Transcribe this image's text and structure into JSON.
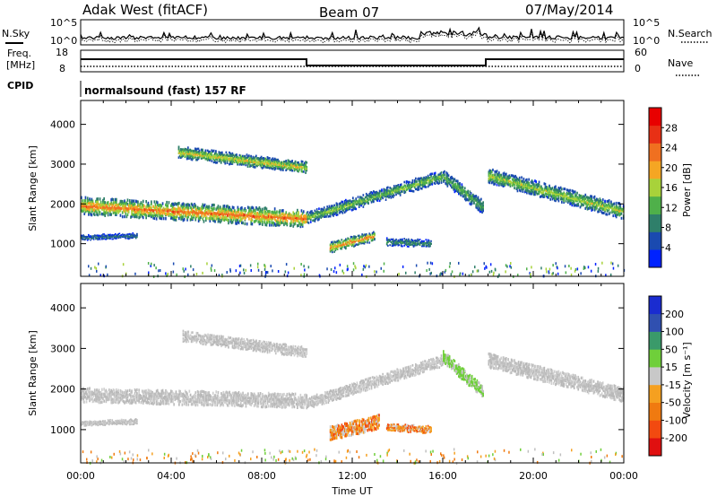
{
  "header": {
    "station": "Adak West (fitACF)",
    "beam": "Beam 07",
    "date": "07/May/2014"
  },
  "noise_panel": {
    "left_label": "N.Sky",
    "right_label": "N.Search",
    "y_ticks": [
      "10^5",
      "10^0"
    ]
  },
  "freq_panel": {
    "left_label_1": "Freq.",
    "left_label_2": "[MHz]",
    "right_label": "Nave",
    "left_ticks": [
      "18",
      "8"
    ],
    "right_ticks": [
      "60",
      "0"
    ],
    "cpid_label": "CPID",
    "cpid_value": "normalsound (fast) 157 RF"
  },
  "colors": {
    "power_scale": [
      "#0022ff",
      "#1a4ab0",
      "#2f7f6a",
      "#4fb04a",
      "#a8d23a",
      "#f5a623",
      "#f07020",
      "#e83015",
      "#e80000"
    ],
    "velocity_scale": [
      "#e01010",
      "#f24a10",
      "#f07a10",
      "#f5a020",
      "#c8c8c8",
      "#6fcf3a",
      "#3a9a6a",
      "#3050b0",
      "#1a2cd0"
    ],
    "ground_scatter": "#c0c0c0"
  },
  "chart_data": [
    {
      "type": "heatmap",
      "name": "power",
      "x_ticks": [
        "00:00",
        "04:00",
        "08:00",
        "12:00",
        "16:00",
        "20:00",
        "00:00"
      ],
      "x_range_hours": [
        0,
        24
      ],
      "ylabel": "Slant Range [km]",
      "y_ticks": [
        1000,
        2000,
        3000,
        4000
      ],
      "ylim": [
        180,
        4600
      ],
      "colorbar_label": "Power [dB]",
      "colorbar_ticks": [
        4,
        8,
        12,
        16,
        20,
        24,
        28
      ],
      "colorbar_range": [
        0,
        32
      ],
      "bands": [
        {
          "t0": 0,
          "t1": 10,
          "r0": 1950,
          "r1": 1620,
          "width": 380,
          "level": 24
        },
        {
          "t0": 10,
          "t1": 16,
          "r0": 1650,
          "r1": 2700,
          "width": 260,
          "level": 14
        },
        {
          "t0": 16,
          "t1": 17.8,
          "r0": 2700,
          "r1": 1900,
          "width": 300,
          "level": 12
        },
        {
          "t0": 18,
          "t1": 24,
          "r0": 2700,
          "r1": 1800,
          "width": 320,
          "level": 16
        },
        {
          "t0": 4.3,
          "t1": 10,
          "r0": 3300,
          "r1": 2900,
          "width": 250,
          "level": 18
        },
        {
          "t0": 11,
          "t1": 13,
          "r0": 900,
          "r1": 1200,
          "width": 220,
          "level": 22
        },
        {
          "t0": 13.5,
          "t1": 15.5,
          "r0": 1050,
          "r1": 1000,
          "width": 150,
          "level": 10
        },
        {
          "t0": 0,
          "t1": 2.5,
          "r0": 1150,
          "r1": 1200,
          "width": 100,
          "level": 8
        }
      ]
    },
    {
      "type": "heatmap",
      "name": "velocity",
      "x_ticks": [
        "00:00",
        "04:00",
        "08:00",
        "12:00",
        "16:00",
        "20:00",
        "00:00"
      ],
      "xlabel": "Time UT",
      "x_range_hours": [
        0,
        24
      ],
      "ylabel": "Slant Range [km]",
      "y_ticks": [
        1000,
        2000,
        3000,
        4000
      ],
      "ylim": [
        180,
        4600
      ],
      "colorbar_label": "Velocity [m s⁻¹]",
      "colorbar_ticks": [
        "-200",
        "-100",
        "-50",
        "-15",
        "15",
        "50",
        "100",
        "200"
      ],
      "bands": [
        {
          "t0": 0,
          "t1": 10,
          "r0": 1850,
          "r1": 1700,
          "width": 300,
          "class": "ground"
        },
        {
          "t0": 10,
          "t1": 16,
          "r0": 1650,
          "r1": 2700,
          "width": 240,
          "class": "ground"
        },
        {
          "t0": 16,
          "t1": 17.8,
          "r0": 2800,
          "r1": 1900,
          "width": 260,
          "class": "green"
        },
        {
          "t0": 18,
          "t1": 24,
          "r0": 2700,
          "r1": 1850,
          "width": 300,
          "class": "ground"
        },
        {
          "t0": 4.5,
          "t1": 10,
          "r0": 3300,
          "r1": 2900,
          "width": 220,
          "class": "ground"
        },
        {
          "t0": 11,
          "t1": 13.2,
          "r0": 900,
          "r1": 1200,
          "width": 300,
          "class": "orange"
        },
        {
          "t0": 13.5,
          "t1": 15.5,
          "r0": 1050,
          "r1": 1000,
          "width": 150,
          "class": "orange"
        },
        {
          "t0": 0,
          "t1": 2.5,
          "r0": 1150,
          "r1": 1200,
          "width": 100,
          "class": "ground"
        }
      ]
    }
  ]
}
